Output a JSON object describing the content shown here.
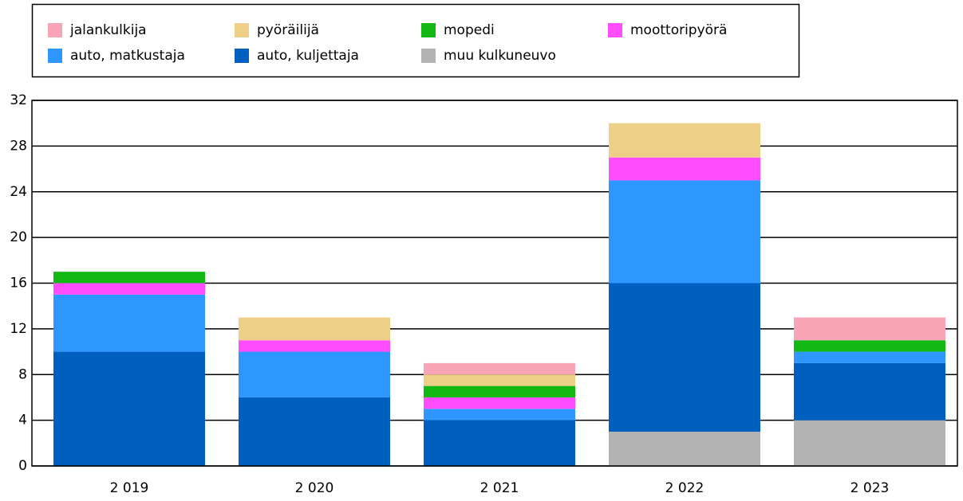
{
  "chart_data": {
    "type": "stacked_bar",
    "categories": [
      "2 019",
      "2 020",
      "2 021",
      "2 022",
      "2 023"
    ],
    "series": [
      {
        "name": "jalankulkija",
        "color": "#f9a3b6",
        "values": [
          0,
          0,
          1,
          0,
          2
        ]
      },
      {
        "name": "pyöräilijä",
        "color": "#eecf88",
        "values": [
          0,
          2,
          1,
          3,
          0
        ]
      },
      {
        "name": "mopedi",
        "color": "#14b814",
        "values": [
          1,
          0,
          1,
          0,
          1
        ]
      },
      {
        "name": "moottoripyörä",
        "color": "#ff4dff",
        "values": [
          1,
          1,
          1,
          2,
          0
        ]
      },
      {
        "name": "auto, matkustaja",
        "color": "#2e96ff",
        "values": [
          5,
          4,
          1,
          9,
          1
        ]
      },
      {
        "name": "auto, kuljettaja",
        "color": "#0060bf",
        "values": [
          10,
          6,
          4,
          13,
          5
        ]
      },
      {
        "name": "muu kulkuneuvo",
        "color": "#b3b3b3",
        "values": [
          0,
          0,
          0,
          3,
          4
        ]
      }
    ],
    "ylim": [
      0,
      32
    ],
    "yticks": [
      0,
      4,
      8,
      12,
      16,
      20,
      24,
      28,
      32
    ],
    "grid": true
  }
}
